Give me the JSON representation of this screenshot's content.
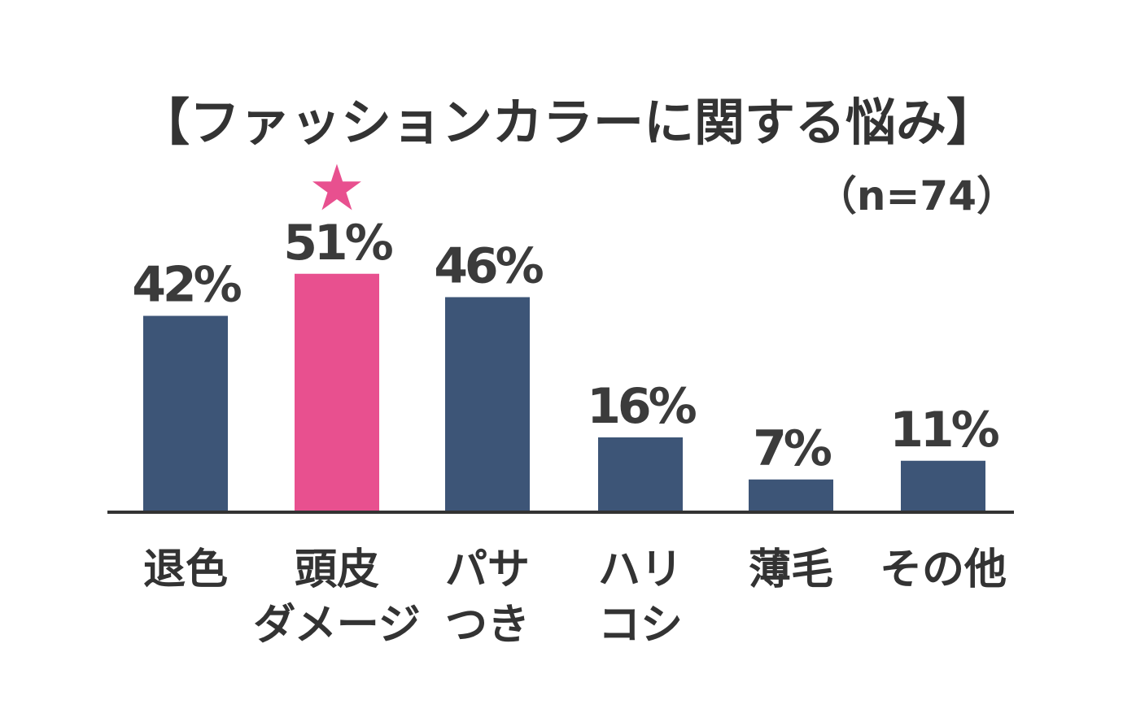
{
  "chart_data": {
    "type": "bar",
    "title": "【ファッションカラーに関する悩み】",
    "subtitle": "（n=74）",
    "categories": [
      [
        "退色"
      ],
      [
        "頭皮",
        "ダメージ"
      ],
      [
        "パサ",
        "つき"
      ],
      [
        "ハリ",
        "コシ"
      ],
      [
        "薄毛"
      ],
      [
        "その他"
      ]
    ],
    "values": [
      42,
      51,
      46,
      16,
      7,
      11
    ],
    "value_labels": [
      "42%",
      "51%",
      "46%",
      "16%",
      "7%",
      "11%"
    ],
    "unit": "%",
    "highlight_index": 1,
    "highlight_marker": "★",
    "ylim": [
      0,
      100
    ],
    "grid": false,
    "legend": "none",
    "colors": {
      "bar": "#3d5577",
      "highlight": "#e8508f",
      "axis": "#333333",
      "text": "#333333"
    }
  }
}
